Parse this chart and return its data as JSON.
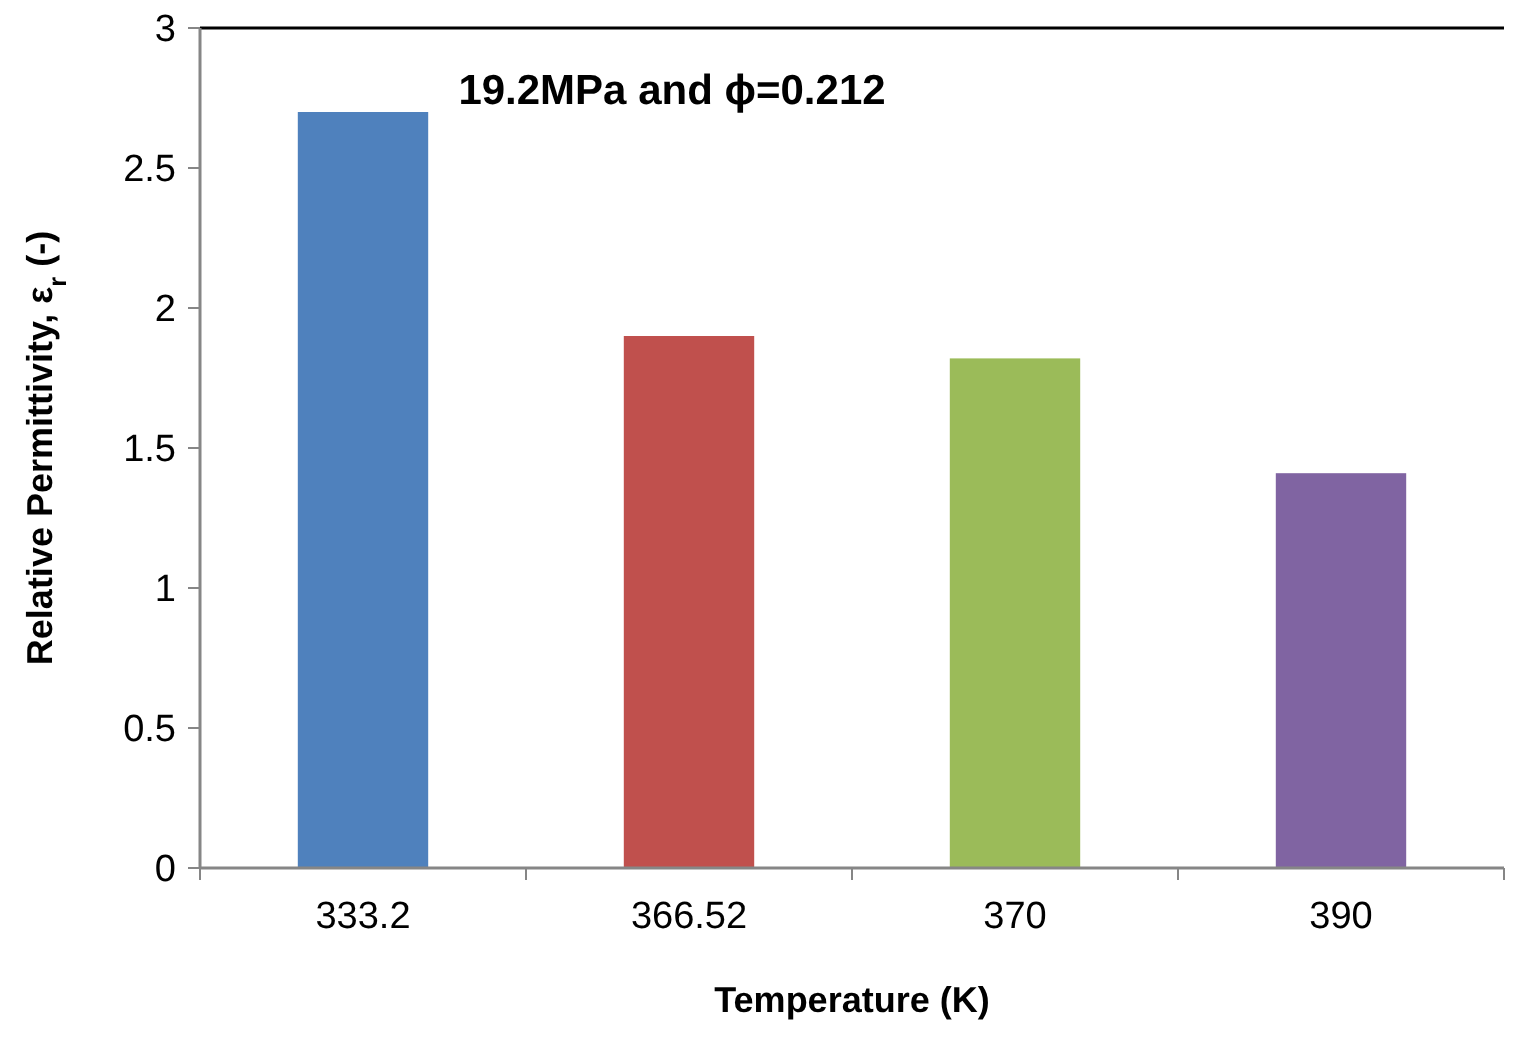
{
  "chart_data": {
    "type": "bar",
    "title": "19.2MPa and ϕ=0.212",
    "xlabel": "Temperature (K)",
    "ylabel": "Relative Permittivity,  ε$_{r}$ (-)",
    "categories": [
      "333.2",
      "366.52",
      "370",
      "390"
    ],
    "values": [
      2.7,
      1.9,
      1.82,
      1.41
    ],
    "colors": [
      "#4f81bd",
      "#c0504d",
      "#9bbb59",
      "#8064a2"
    ],
    "ylim": [
      0,
      3
    ],
    "yticks": [
      0,
      0.5,
      1,
      1.5,
      2,
      2.5,
      3
    ],
    "grid": false
  }
}
